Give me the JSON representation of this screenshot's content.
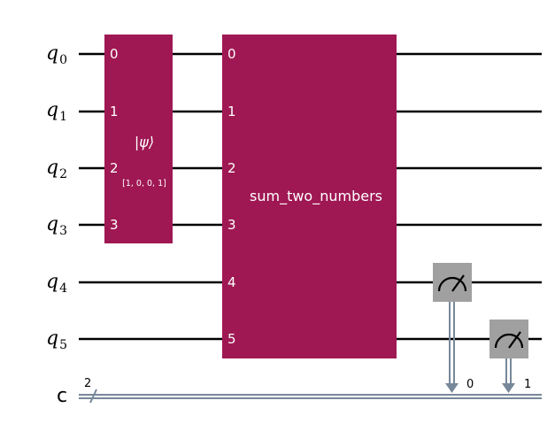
{
  "qubits": [
    "q0",
    "q1",
    "q2",
    "q3",
    "q4",
    "q5"
  ],
  "qubit_labels": [
    {
      "base": "q",
      "sub": "0"
    },
    {
      "base": "q",
      "sub": "1"
    },
    {
      "base": "q",
      "sub": "2"
    },
    {
      "base": "q",
      "sub": "3"
    },
    {
      "base": "q",
      "sub": "4"
    },
    {
      "base": "q",
      "sub": "5"
    }
  ],
  "classical_register": {
    "label": "c",
    "size": "2"
  },
  "gates": [
    {
      "name": "initialize",
      "label": "|ψ⟩",
      "params": "[1, 0, 0, 1]",
      "color": "#9f1853",
      "pins": [
        "0",
        "1",
        "2",
        "3"
      ]
    },
    {
      "name": "sum_two_numbers",
      "label": "sum_two_numbers",
      "color": "#9f1853",
      "pins": [
        "0",
        "1",
        "2",
        "3",
        "4",
        "5"
      ]
    }
  ],
  "measurements": [
    {
      "qubit": "q4",
      "clbit_label": "0",
      "color": "#a0a0a0",
      "icon": "meter-icon"
    },
    {
      "qubit": "q5",
      "clbit_label": "1",
      "color": "#a0a0a0",
      "icon": "meter-icon"
    }
  ],
  "colors": {
    "wire": "#000000",
    "classical_wire": "#778899",
    "gate": "#9f1853",
    "measure": "#a0a0a0"
  }
}
